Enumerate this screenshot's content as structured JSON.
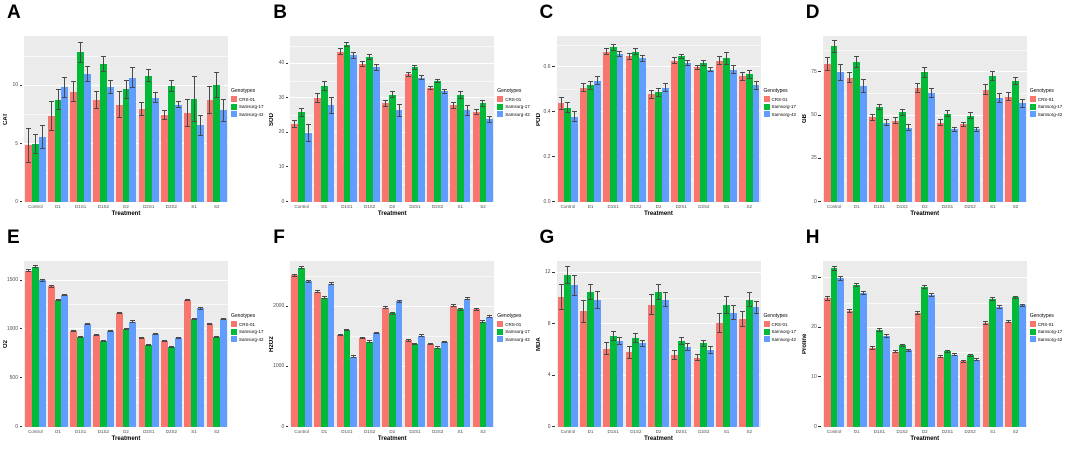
{
  "figure": {
    "xlabel": "Treatment",
    "legend_title": "Genotypes",
    "categories": [
      "Control",
      "D1",
      "D1S1",
      "D1S2",
      "D2",
      "D2S1",
      "D2S2",
      "S1",
      "S2"
    ],
    "series": [
      {
        "name": "CRS-01",
        "color": "#F8766D"
      },
      {
        "name": "Samsorg-17",
        "color": "#00BA38"
      },
      {
        "name": "Samsorg-42",
        "color": "#619CFF"
      }
    ],
    "plot_background": "#EBEBEB",
    "gridline_color": "#FFFFFF",
    "legend_position": "right"
  },
  "chart_data": [
    {
      "type": "bar",
      "panel": "A",
      "ylabel": "CAT",
      "xlabel": "Treatment",
      "ylim": [
        0,
        14.3
      ],
      "yticks": [
        0,
        5,
        10
      ],
      "ytick_labels": [
        "0",
        "5",
        "10"
      ],
      "categories": [
        "Control",
        "D1",
        "D1S1",
        "D1S2",
        "D2",
        "D2S1",
        "D2S2",
        "S1",
        "S2"
      ],
      "series": [
        {
          "name": "CRS-01",
          "values": [
            4.9,
            7.4,
            9.5,
            8.8,
            8.4,
            8.0,
            7.5,
            7.7,
            8.8
          ],
          "errors": [
            1.5,
            1.3,
            0.9,
            0.8,
            1.2,
            0.6,
            0.4,
            1.2,
            1.2
          ]
        },
        {
          "name": "Samsorg-17",
          "values": [
            5.0,
            8.8,
            12.9,
            11.9,
            9.7,
            10.9,
            10.0,
            8.9,
            10.1
          ],
          "errors": [
            0.9,
            0.9,
            0.9,
            0.7,
            0.8,
            0.6,
            0.5,
            2.0,
            1.1
          ]
        },
        {
          "name": "Samsorg-42",
          "values": [
            5.6,
            9.9,
            11.0,
            9.9,
            10.7,
            9.0,
            8.4,
            6.6,
            7.9
          ],
          "errors": [
            1.0,
            0.9,
            0.7,
            0.6,
            0.9,
            0.5,
            0.3,
            0.9,
            1.0
          ]
        }
      ]
    },
    {
      "type": "bar",
      "panel": "B",
      "ylabel": "SOD",
      "xlabel": "Treatment",
      "ylim": [
        0,
        48
      ],
      "yticks": [
        0,
        10,
        20,
        30,
        40
      ],
      "ytick_labels": [
        "0",
        "10",
        "20",
        "30",
        "40"
      ],
      "categories": [
        "Control",
        "D1",
        "D1S1",
        "D1S2",
        "D2",
        "D2S1",
        "D2S2",
        "S1",
        "S2"
      ],
      "series": [
        {
          "name": "CRS-01",
          "values": [
            22.5,
            30,
            43.5,
            40,
            28.5,
            37,
            33,
            28,
            26
          ],
          "errors": [
            1.2,
            1.4,
            1.0,
            0.9,
            1.0,
            0.7,
            0.6,
            1.0,
            0.8
          ]
        },
        {
          "name": "Samsorg-17",
          "values": [
            26,
            33.5,
            45.5,
            42,
            31,
            39,
            35,
            31,
            28.5
          ],
          "errors": [
            1.3,
            1.4,
            0.8,
            0.8,
            1.0,
            0.7,
            0.7,
            1.1,
            0.9
          ]
        },
        {
          "name": "Samsorg-42",
          "values": [
            20,
            28,
            42.5,
            39,
            26.5,
            36,
            32,
            26.5,
            24
          ],
          "errors": [
            2.6,
            2.4,
            1.0,
            1.0,
            2.0,
            0.8,
            0.8,
            1.5,
            1.0
          ]
        }
      ]
    },
    {
      "type": "bar",
      "panel": "C",
      "ylabel": "POD",
      "xlabel": "Treatment",
      "ylim": [
        0,
        0.74
      ],
      "yticks": [
        0,
        0.2,
        0.4,
        0.6
      ],
      "ytick_labels": [
        "0.0",
        "0.2",
        "0.4",
        "0.6"
      ],
      "categories": [
        "Control",
        "D1",
        "D1S1",
        "D1S2",
        "D2",
        "D2S1",
        "D2S2",
        "S1",
        "S2"
      ],
      "series": [
        {
          "name": "CRS-01",
          "values": [
            0.44,
            0.51,
            0.67,
            0.65,
            0.48,
            0.63,
            0.6,
            0.63,
            0.56
          ],
          "errors": [
            0.03,
            0.02,
            0.015,
            0.015,
            0.02,
            0.015,
            0.012,
            0.02,
            0.02
          ]
        },
        {
          "name": "Samsorg-17",
          "values": [
            0.42,
            0.52,
            0.69,
            0.67,
            0.49,
            0.65,
            0.62,
            0.64,
            0.57
          ],
          "errors": [
            0.025,
            0.02,
            0.015,
            0.015,
            0.02,
            0.012,
            0.012,
            0.03,
            0.02
          ]
        },
        {
          "name": "Samsorg-42",
          "values": [
            0.38,
            0.54,
            0.66,
            0.64,
            0.51,
            0.62,
            0.59,
            0.59,
            0.52
          ],
          "errors": [
            0.025,
            0.02,
            0.015,
            0.015,
            0.02,
            0.012,
            0.012,
            0.02,
            0.02
          ]
        }
      ]
    },
    {
      "type": "bar",
      "panel": "D",
      "ylabel": "GB",
      "xlabel": "Treatment",
      "ylim": [
        0,
        96
      ],
      "yticks": [
        0,
        25,
        50,
        75
      ],
      "ytick_labels": [
        "0",
        "25",
        "50",
        "75"
      ],
      "categories": [
        "Control",
        "D1",
        "D1S1",
        "D1S2",
        "D2",
        "D2S1",
        "D2S2",
        "S1",
        "S2"
      ],
      "series": [
        {
          "name": "CRS-01",
          "values": [
            80,
            72,
            49,
            47,
            66,
            46,
            45,
            65,
            61
          ],
          "errors": [
            4,
            3,
            2,
            2,
            3,
            2,
            1.5,
            3,
            2.5
          ]
        },
        {
          "name": "Samsorg-17",
          "values": [
            90,
            81,
            55,
            52,
            75,
            51,
            50,
            73,
            70
          ],
          "errors": [
            4,
            3.5,
            2,
            2,
            3,
            2,
            2,
            3,
            2.5
          ]
        },
        {
          "name": "Samsorg-42",
          "values": [
            75,
            67,
            46,
            43,
            63,
            42,
            42,
            60,
            57
          ],
          "errors": [
            5,
            4,
            2,
            2,
            3,
            1.5,
            1.5,
            3,
            2.5
          ]
        }
      ]
    },
    {
      "type": "bar",
      "panel": "E",
      "ylabel": "O2",
      "xlabel": "Treatment",
      "ylim": [
        0,
        1700
      ],
      "yticks": [
        0,
        500,
        1000,
        1500
      ],
      "ytick_labels": [
        "0",
        "500",
        "1000",
        "1500"
      ],
      "categories": [
        "Control",
        "D1",
        "D1S1",
        "D1S2",
        "D2",
        "D2S1",
        "D2S2",
        "S1",
        "S2"
      ],
      "series": [
        {
          "name": "CRS-01",
          "values": [
            1600,
            1440,
            980,
            945,
            1170,
            915,
            880,
            1300,
            1055
          ],
          "errors": [
            15,
            15,
            10,
            10,
            12,
            10,
            10,
            12,
            10
          ]
        },
        {
          "name": "Samsorg-17",
          "values": [
            1640,
            1300,
            920,
            880,
            1005,
            840,
            820,
            1110,
            920
          ],
          "errors": [
            15,
            12,
            10,
            10,
            12,
            10,
            10,
            12,
            10
          ]
        },
        {
          "name": "Samsorg-42",
          "values": [
            1505,
            1350,
            1055,
            985,
            1080,
            950,
            910,
            1215,
            1110
          ],
          "errors": [
            15,
            12,
            10,
            10,
            12,
            10,
            10,
            12,
            10
          ]
        }
      ]
    },
    {
      "type": "bar",
      "panel": "F",
      "ylabel": "H2O2",
      "xlabel": "Treatment",
      "ylim": [
        0,
        2760
      ],
      "yticks": [
        0,
        1000,
        2000
      ],
      "ytick_labels": [
        "0",
        "1000",
        "2000"
      ],
      "categories": [
        "Control",
        "D1",
        "D1S1",
        "D1S2",
        "D2",
        "D2S1",
        "D2S2",
        "S1",
        "S2"
      ],
      "series": [
        {
          "name": "CRS-01",
          "values": [
            2520,
            2250,
            1530,
            1480,
            1980,
            1440,
            1380,
            2020,
            1960
          ],
          "errors": [
            25,
            25,
            20,
            20,
            25,
            20,
            20,
            25,
            25
          ]
        },
        {
          "name": "Samsorg-17",
          "values": [
            2650,
            2150,
            1610,
            1420,
            1890,
            1380,
            1320,
            1960,
            1750
          ],
          "errors": [
            25,
            25,
            20,
            20,
            25,
            20,
            20,
            25,
            25
          ]
        },
        {
          "name": "Samsorg-42",
          "values": [
            2420,
            2380,
            1170,
            1560,
            2090,
            1520,
            1410,
            2130,
            1830
          ],
          "errors": [
            25,
            25,
            20,
            20,
            25,
            20,
            20,
            25,
            25
          ]
        }
      ]
    },
    {
      "type": "bar",
      "panel": "G",
      "ylabel": "MDA",
      "xlabel": "Treatment",
      "ylim": [
        0,
        12.9
      ],
      "yticks": [
        0,
        4,
        8,
        12
      ],
      "ytick_labels": [
        "0",
        "4",
        "8",
        "12"
      ],
      "categories": [
        "Control",
        "D1",
        "D1S1",
        "D1S2",
        "D2",
        "D2S1",
        "D2S2",
        "S1",
        "S2"
      ],
      "series": [
        {
          "name": "CRS-01",
          "values": [
            10.1,
            9.0,
            6.1,
            5.8,
            9.5,
            5.6,
            5.4,
            8.1,
            8.4
          ],
          "errors": [
            1.0,
            0.9,
            0.5,
            0.5,
            0.8,
            0.4,
            0.3,
            0.8,
            0.6
          ]
        },
        {
          "name": "Samsorg-17",
          "values": [
            11.8,
            10.5,
            7.1,
            6.9,
            10.5,
            6.7,
            6.5,
            9.5,
            9.9
          ],
          "errors": [
            0.7,
            0.6,
            0.4,
            0.4,
            0.6,
            0.3,
            0.3,
            0.7,
            0.6
          ]
        },
        {
          "name": "Samsorg-42",
          "values": [
            11.0,
            9.9,
            6.7,
            6.5,
            9.9,
            6.2,
            6.0,
            8.9,
            9.3
          ],
          "errors": [
            0.8,
            0.7,
            0.3,
            0.3,
            0.6,
            0.3,
            0.3,
            0.6,
            0.5
          ]
        }
      ]
    },
    {
      "type": "bar",
      "panel": "H",
      "ylabel": "Proline",
      "xlabel": "Treatment",
      "ylim": [
        0,
        33.5
      ],
      "yticks": [
        0,
        10,
        20,
        30
      ],
      "ytick_labels": [
        "0",
        "10",
        "20",
        "30"
      ],
      "categories": [
        "Control",
        "D1",
        "D1S1",
        "D1S2",
        "D2",
        "D2S1",
        "D2S2",
        "S1",
        "S2"
      ],
      "series": [
        {
          "name": "CRS-01",
          "values": [
            26,
            23.5,
            16,
            15.2,
            23,
            14.2,
            13.3,
            21,
            21.3
          ],
          "errors": [
            0.5,
            0.4,
            0.4,
            0.3,
            0.4,
            0.3,
            0.3,
            0.4,
            0.3
          ]
        },
        {
          "name": "Samsorg-17",
          "values": [
            32,
            28.7,
            19.5,
            16.5,
            28.3,
            15.3,
            14.5,
            25.8,
            26.2
          ],
          "errors": [
            0.5,
            0.4,
            0.4,
            0.3,
            0.4,
            0.3,
            0.3,
            0.4,
            0.3
          ]
        },
        {
          "name": "Samsorg-42",
          "values": [
            30,
            27,
            18.3,
            15.5,
            26.7,
            14.6,
            13.6,
            24.2,
            24.6
          ],
          "errors": [
            0.5,
            0.4,
            0.4,
            0.3,
            0.4,
            0.3,
            0.3,
            0.4,
            0.3
          ]
        }
      ]
    }
  ]
}
